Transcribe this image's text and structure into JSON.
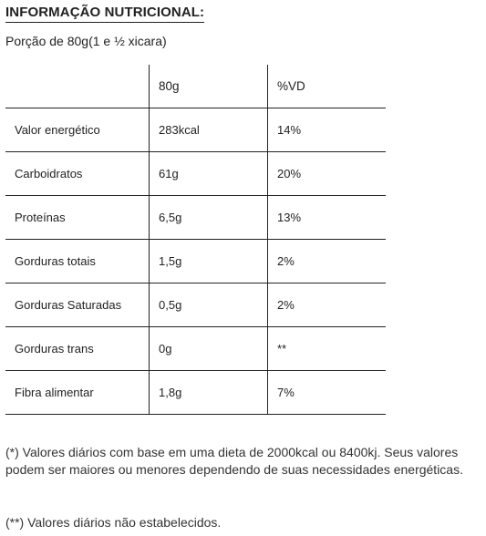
{
  "title": "INFORMAÇÃO NUTRICIONAL:",
  "portion": "Porção de 80g(1 e ½ xicara)",
  "table": {
    "headers": [
      "",
      "80g",
      "%VD"
    ],
    "rows": [
      {
        "name": "Valor energético",
        "amount": "283kcal",
        "dv": "14%"
      },
      {
        "name": "Carboidratos",
        "amount": "61g",
        "dv": "20%"
      },
      {
        "name": "Proteínas",
        "amount": "6,5g",
        "dv": "13%"
      },
      {
        "name": "Gorduras totais",
        "amount": "1,5g",
        "dv": "2%"
      },
      {
        "name": "Gorduras Saturadas",
        "amount": "0,5g",
        "dv": "2%"
      },
      {
        "name": "Gorduras trans",
        "amount": "0g",
        "dv": "**"
      },
      {
        "name": "Fibra alimentar",
        "amount": "1,8g",
        "dv": "7%"
      }
    ]
  },
  "notes": {
    "daily_values": "(*) Valores diários com base em uma dieta de 2000kcal ou 8400kj. Seus valores podem ser maiores ou menores dependendo de suas necessidades energéticas.",
    "not_established": "(**) Valores diários não estabelecidos."
  }
}
